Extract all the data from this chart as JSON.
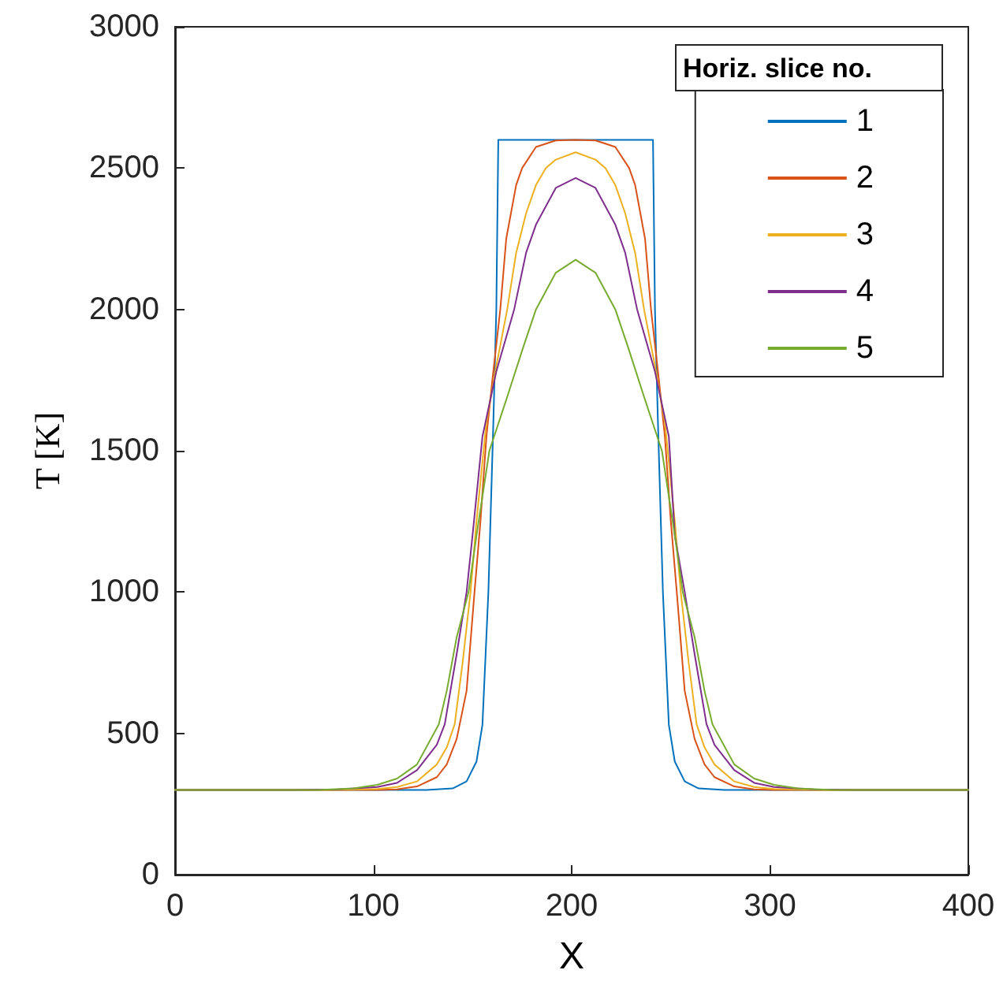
{
  "chart_data": {
    "type": "line",
    "xlabel": "X",
    "ylabel": "T [K]",
    "legend_title": "Horiz. slice no.",
    "legend": "top right",
    "grid": false,
    "marker": "none",
    "line_style": "solid",
    "xlim": [
      0,
      400
    ],
    "xticks": [
      0,
      100,
      200,
      300,
      400
    ],
    "ylim": [
      0,
      3000
    ],
    "yticks": [
      0,
      500,
      1000,
      1500,
      2000,
      2500,
      3000
    ],
    "series": [
      {
        "name": "1",
        "color": "#0072bd",
        "x": [
          0,
          127,
          140,
          147,
          152,
          155,
          158,
          160.5,
          162,
          163,
          241,
          242,
          243.5,
          246,
          249,
          252,
          257,
          264,
          277,
          400
        ],
        "values": [
          300,
          300,
          305,
          330,
          400,
          530,
          1000,
          1600,
          2000,
          2600,
          2600,
          2000,
          1600,
          1000,
          530,
          400,
          330,
          305,
          300,
          300
        ]
      },
      {
        "name": "2",
        "color": "#d95319",
        "x": [
          0,
          102,
          112,
          122,
          132,
          137,
          142,
          147,
          151,
          154,
          157,
          160,
          164,
          167,
          172,
          175,
          182,
          192,
          202,
          212,
          222,
          229,
          232,
          237,
          240,
          244,
          247,
          250,
          253,
          257,
          262,
          267,
          272,
          282,
          292,
          302,
          400
        ],
        "values": [
          300,
          300,
          302,
          312,
          345,
          390,
          480,
          650,
          1000,
          1250,
          1550,
          1750,
          2000,
          2250,
          2440,
          2500,
          2575,
          2598,
          2600,
          2598,
          2575,
          2500,
          2440,
          2250,
          2000,
          1750,
          1550,
          1250,
          1000,
          650,
          480,
          390,
          345,
          312,
          302,
          300,
          300
        ]
      },
      {
        "name": "3",
        "color": "#edb120",
        "x": [
          0,
          82,
          102,
          112,
          122,
          132,
          137,
          141,
          145,
          149,
          152,
          157,
          162,
          167.5,
          172,
          177,
          182,
          187,
          192,
          202,
          212,
          217,
          222,
          227,
          232,
          236.5,
          242,
          247,
          252,
          255,
          259,
          263,
          267,
          272,
          282,
          292,
          302,
          322,
          400
        ],
        "values": [
          300,
          300,
          303,
          310,
          330,
          390,
          450,
          532,
          750,
          1000,
          1250,
          1600,
          1800,
          2000,
          2200,
          2340,
          2440,
          2500,
          2530,
          2556,
          2530,
          2500,
          2440,
          2340,
          2200,
          2000,
          1800,
          1600,
          1250,
          1000,
          750,
          532,
          450,
          390,
          330,
          310,
          303,
          300,
          300
        ]
      },
      {
        "name": "4",
        "color": "#7e2f8e",
        "x": [
          0,
          62,
          82,
          102,
          112,
          122,
          132,
          136,
          142,
          147,
          150,
          155,
          162,
          171,
          177,
          182,
          192,
          202,
          212,
          222,
          227,
          233,
          242,
          249,
          252,
          257,
          262,
          268,
          272,
          282,
          292,
          302,
          322,
          342,
          400
        ],
        "values": [
          300,
          300,
          302,
          310,
          325,
          370,
          460,
          532,
          780,
          1000,
          1200,
          1550,
          1780,
          2000,
          2200,
          2300,
          2430,
          2465,
          2430,
          2300,
          2200,
          2000,
          1780,
          1550,
          1200,
          1000,
          780,
          532,
          460,
          370,
          325,
          310,
          302,
          300,
          300
        ]
      },
      {
        "name": "5",
        "color": "#77ac30",
        "x": [
          0,
          72,
          90,
          102,
          112,
          122,
          133,
          137,
          142,
          148,
          152,
          158.5,
          167,
          175.5,
          182,
          192,
          202,
          212,
          222,
          228.5,
          237,
          245.5,
          252,
          256,
          262,
          267,
          271,
          282,
          292,
          302,
          314,
          332,
          400
        ],
        "values": [
          300,
          300,
          305,
          318,
          340,
          390,
          532,
          650,
          840,
          1000,
          1200,
          1500,
          1680,
          1865,
          2000,
          2130,
          2176,
          2130,
          2000,
          1865,
          1680,
          1500,
          1200,
          1000,
          840,
          650,
          532,
          390,
          340,
          318,
          305,
          300,
          300
        ]
      }
    ]
  }
}
